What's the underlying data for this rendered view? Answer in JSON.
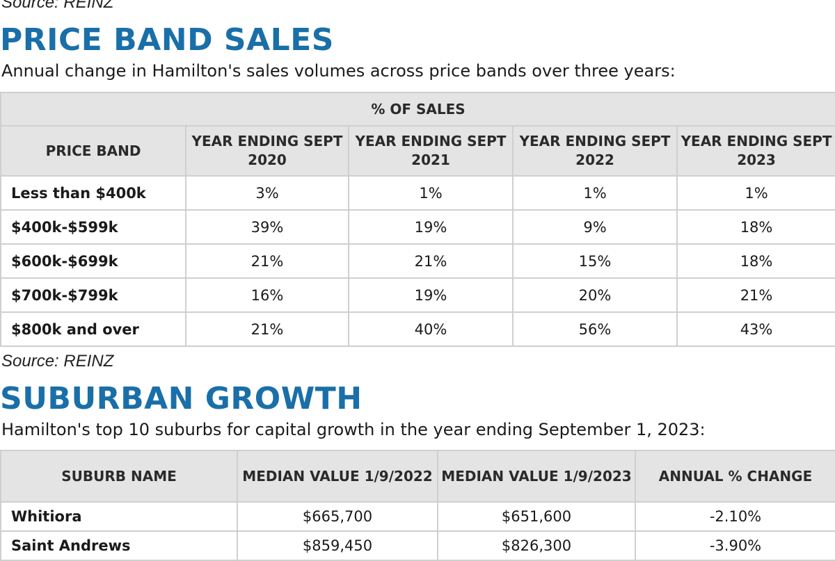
{
  "section1": {
    "source_top": "Source: REINZ",
    "title": "PRICE BAND SALES",
    "subtitle": "Annual change in Hamilton's sales volumes across price bands over three years:",
    "group_header": "% OF SALES",
    "headers": [
      "PRICE BAND",
      "YEAR ENDING SEPT 2020",
      "YEAR ENDING SEPT 2021",
      "YEAR ENDING SEPT 2022",
      "YEAR ENDING SEPT 2023"
    ],
    "rows": [
      [
        "Less than $400k",
        "3%",
        "1%",
        "1%",
        "1%"
      ],
      [
        "$400k-$599k",
        "39%",
        "19%",
        "9%",
        "18%"
      ],
      [
        "$600k-$699k",
        "21%",
        "21%",
        "15%",
        "18%"
      ],
      [
        "$700k-$799k",
        "16%",
        "19%",
        "20%",
        "21%"
      ],
      [
        "$800k and over",
        "21%",
        "40%",
        "56%",
        "43%"
      ]
    ],
    "source_bottom": "Source: REINZ"
  },
  "section2": {
    "title": "SUBURBAN GROWTH",
    "subtitle": "Hamilton's top 10 suburbs for capital growth in the year ending September 1, 2023:",
    "headers": [
      "SUBURB NAME",
      "MEDIAN VALUE 1/9/2022",
      "MEDIAN VALUE 1/9/2023",
      "ANNUAL % CHANGE"
    ],
    "rows": [
      [
        "Whitiora",
        "$665,700",
        "$651,600",
        "-2.10%"
      ],
      [
        "Saint Andrews",
        "$859,450",
        "$826,300",
        "-3.90%"
      ]
    ]
  }
}
